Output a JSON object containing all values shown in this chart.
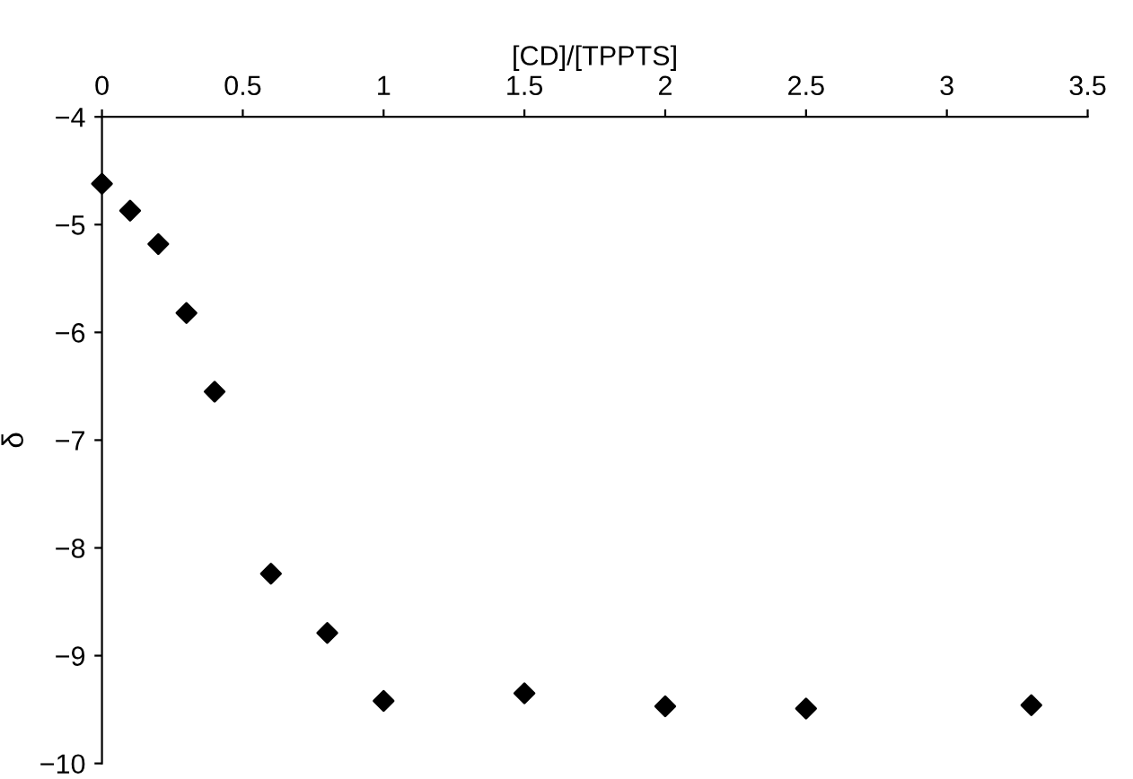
{
  "chart_data": {
    "type": "scatter",
    "xlabel": "[CD]/[TPPTS]",
    "ylabel": "δ",
    "x": [
      0,
      0.1,
      0.2,
      0.3,
      0.4,
      0.6,
      0.8,
      1,
      1.5,
      2,
      2.5,
      3.3
    ],
    "series": [
      {
        "color": "#000000",
        "values": [
          -4.62,
          -4.87,
          -5.18,
          -5.82,
          -6.55,
          -8.24,
          -8.79,
          -9.42,
          -9.35,
          -9.47,
          -9.49,
          -9.46
        ]
      }
    ],
    "xlim": [
      0,
      3.5
    ],
    "xticks": [
      0,
      0.5,
      1,
      1.5,
      2,
      2.5,
      3,
      3.5
    ],
    "ylim": [
      -10,
      -4
    ],
    "yticks": [
      -10,
      -9,
      -8,
      -7,
      -6,
      -5,
      -4
    ],
    "marker": "diamond",
    "grid": false,
    "legend": false
  }
}
